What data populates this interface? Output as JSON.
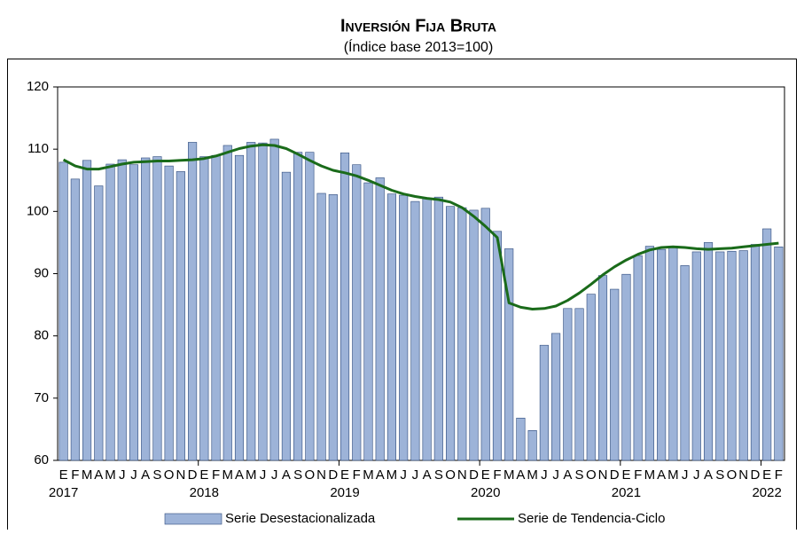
{
  "chart_data": {
    "type": "bar-line",
    "title": "Inversión Fija Bruta",
    "subtitle": "(Índice base 2013=100)",
    "categories": [
      "E",
      "F",
      "M",
      "A",
      "M",
      "J",
      "J",
      "A",
      "S",
      "O",
      "N",
      "D",
      "E",
      "F",
      "M",
      "A",
      "M",
      "J",
      "J",
      "A",
      "S",
      "O",
      "N",
      "D",
      "E",
      "F",
      "M",
      "A",
      "M",
      "J",
      "J",
      "A",
      "S",
      "O",
      "N",
      "D",
      "E",
      "F",
      "M",
      "A",
      "M",
      "J",
      "J",
      "A",
      "S",
      "O",
      "N",
      "D",
      "E",
      "F",
      "M",
      "A",
      "M",
      "J",
      "J",
      "A",
      "S",
      "O",
      "N",
      "D",
      "E",
      "F"
    ],
    "years": [
      "2017",
      "2018",
      "2019",
      "2020",
      "2021",
      "2022"
    ],
    "series": [
      {
        "name": "Serie Desestacionalizada",
        "type": "bar",
        "color": "#9db3d8",
        "edge": "#2d4a7c",
        "values": [
          107.9,
          105.2,
          108.2,
          104.1,
          107.6,
          108.3,
          107.5,
          108.6,
          108.8,
          107.3,
          106.4,
          111.1,
          108.8,
          109.0,
          110.6,
          109.0,
          111.1,
          111.0,
          111.6,
          106.3,
          109.5,
          109.5,
          102.9,
          102.7,
          109.4,
          107.5,
          104.6,
          105.4,
          102.8,
          102.6,
          101.6,
          102.1,
          102.3,
          100.8,
          100.6,
          100.2,
          100.5,
          96.8,
          94.0,
          66.8,
          64.8,
          78.5,
          80.4,
          84.4,
          84.4,
          86.7,
          89.7,
          87.5,
          89.9,
          92.9,
          94.4,
          93.9,
          94.2,
          91.3,
          93.5,
          95.0,
          93.5,
          93.6,
          93.7,
          94.7,
          97.2,
          94.3
        ]
      },
      {
        "name": "Serie de Tendencia-Ciclo",
        "type": "line",
        "color": "#1a6b1a",
        "values": [
          108.3,
          107.3,
          106.8,
          106.8,
          107.2,
          107.6,
          107.9,
          108.0,
          108.1,
          108.1,
          108.2,
          108.3,
          108.5,
          108.9,
          109.5,
          110.1,
          110.5,
          110.7,
          110.6,
          110.1,
          109.2,
          108.2,
          107.3,
          106.6,
          106.2,
          105.7,
          105.0,
          104.2,
          103.4,
          102.8,
          102.4,
          102.1,
          101.9,
          101.5,
          100.6,
          99.2,
          97.6,
          95.8,
          85.3,
          84.6,
          84.3,
          84.4,
          84.8,
          85.7,
          86.9,
          88.3,
          89.8,
          91.1,
          92.2,
          93.1,
          93.8,
          94.2,
          94.3,
          94.2,
          94.0,
          93.9,
          94.0,
          94.1,
          94.3,
          94.5,
          94.7,
          94.9
        ]
      }
    ],
    "ylim": [
      60,
      120
    ],
    "yticks": [
      60,
      70,
      80,
      90,
      100,
      110,
      120
    ],
    "grid": false,
    "legend": "bottom"
  }
}
